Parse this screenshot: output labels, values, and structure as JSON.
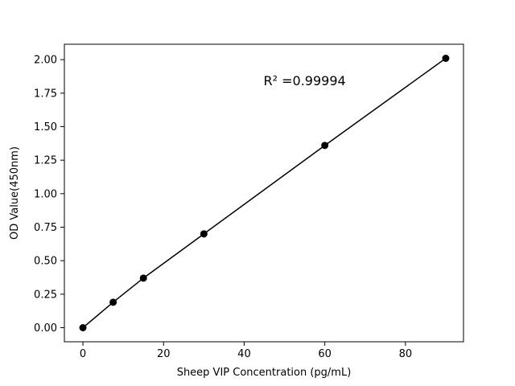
{
  "chart_data": {
    "type": "line",
    "title": "",
    "xlabel": "Sheep VIP Concentration (pg/mL)",
    "ylabel": "OD Value(450nm)",
    "annotation": {
      "text": "R² =0.99994",
      "x": 55,
      "y": 1.84
    },
    "x": [
      0,
      7.5,
      15,
      30,
      60,
      90
    ],
    "y": [
      0.0,
      0.19,
      0.37,
      0.7,
      1.36,
      2.01
    ],
    "series": [
      {
        "name": "standard-curve",
        "x": [
          0,
          7.5,
          15,
          30,
          60,
          90
        ],
        "values": [
          0.0,
          0.19,
          0.37,
          0.7,
          1.36,
          2.01
        ]
      }
    ],
    "xlim": [
      -4.6,
      94.4
    ],
    "ylim": [
      -0.105,
      2.115
    ],
    "xticks": [
      0,
      20,
      40,
      60,
      80
    ],
    "xtick_labels": [
      "0",
      "20",
      "40",
      "60",
      "80"
    ],
    "yticks": [
      0.0,
      0.25,
      0.5,
      0.75,
      1.0,
      1.25,
      1.5,
      1.75,
      2.0
    ],
    "ytick_labels": [
      "0.00",
      "0.25",
      "0.50",
      "0.75",
      "1.00",
      "1.25",
      "1.50",
      "1.75",
      "2.00"
    ],
    "grid": false,
    "legend": "none",
    "line_color": "#000000",
    "marker_color": "#000000",
    "marker_shape": "circle"
  }
}
